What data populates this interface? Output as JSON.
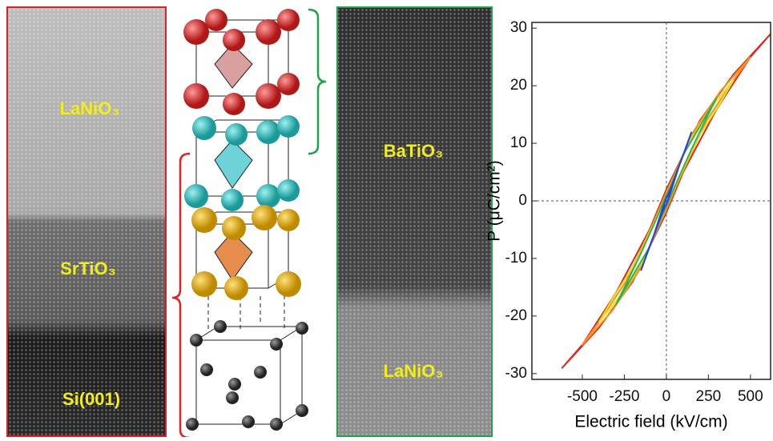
{
  "panels": {
    "stem_left": {
      "labels": [
        "LaNiO₃",
        "SrTiO₃",
        "Si(001)"
      ]
    },
    "stem_right": {
      "labels": [
        "BaTiO₃",
        "LaNiO₃"
      ]
    }
  },
  "chart_data": {
    "type": "line",
    "x_label": "Electric field (kV/cm)",
    "y_label": "P (μC/cm²)",
    "xlim": [
      -800,
      620
    ],
    "ylim": [
      -31,
      31
    ],
    "xticks": [
      -500,
      -250,
      0,
      250,
      500
    ],
    "yticks": [
      -30,
      -20,
      -10,
      0,
      10,
      20,
      30
    ],
    "series": [
      {
        "color": "#e8201c",
        "x": [
          620,
          400,
          200,
          50,
          0,
          -100,
          -300,
          -500,
          -620,
          -400,
          -200,
          -50,
          0,
          100,
          300,
          500,
          620
        ],
        "values": [
          29,
          22,
          14,
          5,
          2,
          -5,
          -16,
          -25,
          -29,
          -22,
          -14,
          -5,
          -2,
          5,
          16,
          25,
          29
        ]
      },
      {
        "color": "#f7941d",
        "x": [
          500,
          320,
          160,
          40,
          0,
          -80,
          -240,
          -400,
          -500,
          -320,
          -160,
          -40,
          0,
          80,
          240,
          400,
          500
        ],
        "values": [
          25,
          19,
          12,
          4,
          1.5,
          -4,
          -14,
          -21,
          -25,
          -19,
          -12,
          -4,
          -1.5,
          4,
          14,
          21,
          25
        ]
      },
      {
        "color": "#e6e21a",
        "x": [
          400,
          260,
          130,
          30,
          0,
          -60,
          -190,
          -320,
          -400,
          -260,
          -130,
          -30,
          0,
          60,
          190,
          320,
          400
        ],
        "values": [
          21,
          16,
          10,
          3,
          1,
          -3,
          -11,
          -17,
          -21,
          -16,
          -10,
          -3,
          -1,
          3,
          11,
          17,
          21
        ]
      },
      {
        "color": "#2db34a",
        "x": [
          300,
          200,
          100,
          25,
          0,
          -50,
          -150,
          -240,
          -300,
          -200,
          -100,
          -25,
          0,
          50,
          150,
          240,
          300
        ],
        "values": [
          18,
          13,
          8,
          2.5,
          1,
          -2.5,
          -9,
          -14.5,
          -18,
          -13,
          -8,
          -2.5,
          -1,
          2.5,
          9,
          14.5,
          18
        ]
      },
      {
        "color": "#2f3fd6",
        "x": [
          150,
          100,
          50,
          10,
          0,
          -25,
          -75,
          -120,
          -150,
          -100,
          -50,
          -10,
          0,
          25,
          75,
          120,
          150
        ],
        "values": [
          12,
          8,
          4,
          1,
          0.5,
          -1.5,
          -6,
          -9.5,
          -12,
          -8,
          -4,
          -1,
          -0.5,
          1.5,
          6,
          9.5,
          12
        ]
      }
    ]
  }
}
